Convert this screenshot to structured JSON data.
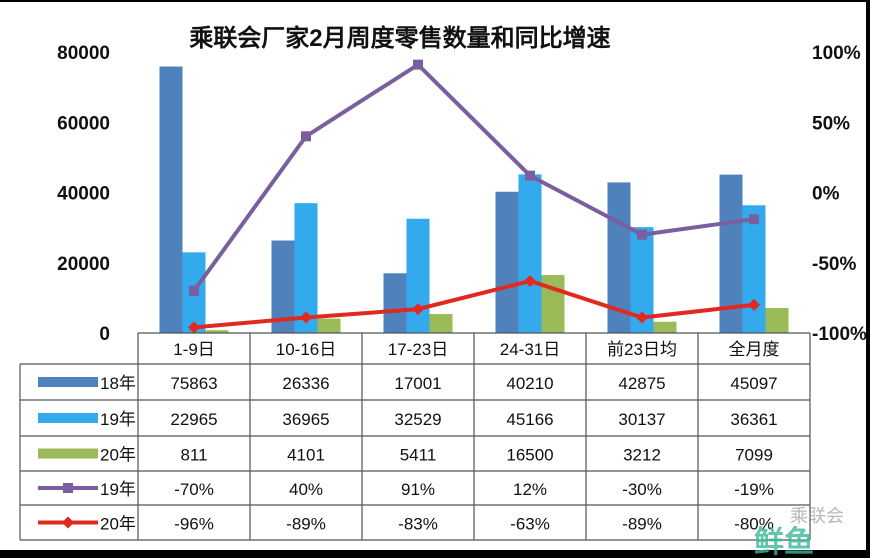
{
  "chart_data": {
    "type": "bar",
    "title": "乘联会厂家2月周度零售数量和同比增速",
    "categories": [
      "1-9日",
      "10-16日",
      "17-23日",
      "24-31日",
      "前23日均",
      "全月度"
    ],
    "left_axis": {
      "ylim": [
        0,
        80000
      ],
      "ticks": [
        "0",
        "20000",
        "40000",
        "60000",
        "80000"
      ]
    },
    "right_axis": {
      "ylim": [
        -100,
        100
      ],
      "ticks": [
        "-100%",
        "-50%",
        "0%",
        "50%",
        "100%"
      ]
    },
    "bar_series": [
      {
        "name": "18年",
        "color": "#4f81bd",
        "values": [
          75863,
          26336,
          17001,
          40210,
          42875,
          45097
        ]
      },
      {
        "name": "19年",
        "color": "#33aaee",
        "values": [
          22965,
          36965,
          32529,
          45166,
          30137,
          36361
        ]
      },
      {
        "name": "20年",
        "color": "#9bbb59",
        "values": [
          811,
          4101,
          5411,
          16500,
          3212,
          7099
        ]
      }
    ],
    "line_series": [
      {
        "name": "19年",
        "color": "#7a5fa0",
        "marker": "square",
        "values": [
          -70,
          40,
          91,
          12,
          -30,
          -19
        ],
        "labels": [
          "-70%",
          "40%",
          "91%",
          "12%",
          "-30%",
          "-19%"
        ]
      },
      {
        "name": "20年",
        "color": "#e02a20",
        "marker": "diamond",
        "values": [
          -96,
          -89,
          -83,
          -63,
          -89,
          -80
        ],
        "labels": [
          "-96%",
          "-89%",
          "-83%",
          "-63%",
          "-89%",
          "-80%"
        ]
      }
    ],
    "legend": "data-table-left"
  },
  "watermark": {
    "text": "乘联会",
    "logo": "鲜鱼"
  }
}
